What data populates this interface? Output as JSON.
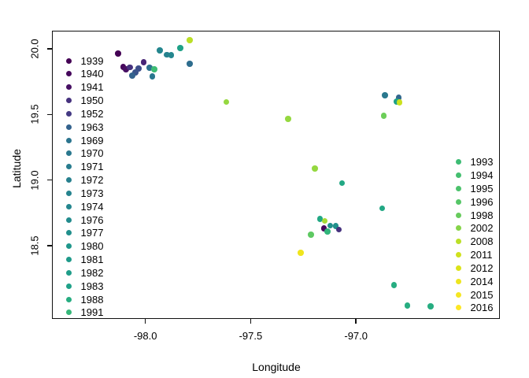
{
  "chart_data": {
    "type": "scatter",
    "title": "",
    "xlabel": "Longitude",
    "ylabel": "Latitude",
    "xlim": [
      -98.438,
      -96.326
    ],
    "ylim": [
      17.954,
      20.132
    ],
    "x_ticks": [
      -98.0,
      -97.5,
      -97.0
    ],
    "x_tick_labels": [
      "-98.0",
      "-97.5",
      "-97.0"
    ],
    "y_ticks": [
      18.5,
      19.0,
      19.5,
      20.0
    ],
    "y_tick_labels": [
      "18.5",
      "19.0",
      "19.5",
      "20.0"
    ],
    "grid": false,
    "point_color_scale": "viridis",
    "legend_left": {
      "position": "inside-top-left",
      "entries": [
        {
          "label": "1939",
          "color": "#440154"
        },
        {
          "label": "1940",
          "color": "#46085C"
        },
        {
          "label": "1941",
          "color": "#471063"
        },
        {
          "label": "1950",
          "color": "#46327E"
        },
        {
          "label": "1952",
          "color": "#443A83"
        },
        {
          "label": "1963",
          "color": "#33628D"
        },
        {
          "label": "1969",
          "color": "#2B748E"
        },
        {
          "label": "1970",
          "color": "#2A788E"
        },
        {
          "label": "1971",
          "color": "#287C8E"
        },
        {
          "label": "1972",
          "color": "#27808E"
        },
        {
          "label": "1973",
          "color": "#25838E"
        },
        {
          "label": "1974",
          "color": "#24868E"
        },
        {
          "label": "1976",
          "color": "#228B8D"
        },
        {
          "label": "1977",
          "color": "#218F8C"
        },
        {
          "label": "1980",
          "color": "#1F978B"
        },
        {
          "label": "1981",
          "color": "#1F9A8A"
        },
        {
          "label": "1982",
          "color": "#1F9D89"
        },
        {
          "label": "1983",
          "color": "#1FA188"
        },
        {
          "label": "1988",
          "color": "#27AD81"
        },
        {
          "label": "1991",
          "color": "#35B779"
        }
      ]
    },
    "legend_right": {
      "position": "inside-right",
      "entries": [
        {
          "label": "1993",
          "color": "#3DBC74"
        },
        {
          "label": "1994",
          "color": "#44BF70"
        },
        {
          "label": "1995",
          "color": "#4CC26C"
        },
        {
          "label": "1996",
          "color": "#55C667"
        },
        {
          "label": "1998",
          "color": "#67CB5D"
        },
        {
          "label": "2002",
          "color": "#86D449"
        },
        {
          "label": "2008",
          "color": "#BBDF27"
        },
        {
          "label": "2011",
          "color": "#D0E11D"
        },
        {
          "label": "2012",
          "color": "#DCE319"
        },
        {
          "label": "2014",
          "color": "#EDE51F"
        },
        {
          "label": "2015",
          "color": "#F5E622"
        },
        {
          "label": "2016",
          "color": "#FDE725"
        }
      ]
    },
    "points": [
      {
        "lon": -98.127,
        "lat": 19.964,
        "color": "#440154"
      },
      {
        "lon": -98.104,
        "lat": 19.862,
        "color": "#46085C"
      },
      {
        "lon": -98.09,
        "lat": 19.844,
        "color": "#471063"
      },
      {
        "lon": -98.071,
        "lat": 19.859,
        "color": "#46327E"
      },
      {
        "lon": -98.007,
        "lat": 19.898,
        "color": "#482576"
      },
      {
        "lon": -98.03,
        "lat": 19.85,
        "color": "#3D4E8A"
      },
      {
        "lon": -98.045,
        "lat": 19.82,
        "color": "#3A538B"
      },
      {
        "lon": -98.06,
        "lat": 19.796,
        "color": "#33638D"
      },
      {
        "lon": -97.978,
        "lat": 19.856,
        "color": "#2C718E"
      },
      {
        "lon": -97.955,
        "lat": 19.844,
        "color": "#3DBC74"
      },
      {
        "lon": -97.966,
        "lat": 19.79,
        "color": "#2A768E"
      },
      {
        "lon": -97.929,
        "lat": 19.988,
        "color": "#24868E"
      },
      {
        "lon": -97.896,
        "lat": 19.955,
        "color": "#26828E"
      },
      {
        "lon": -97.875,
        "lat": 19.952,
        "color": "#24868E"
      },
      {
        "lon": -97.832,
        "lat": 20.006,
        "color": "#1FA187"
      },
      {
        "lon": -97.787,
        "lat": 20.066,
        "color": "#BBDF27"
      },
      {
        "lon": -97.787,
        "lat": 19.886,
        "color": "#2E6D8E"
      },
      {
        "lon": -97.614,
        "lat": 19.595,
        "color": "#95D840"
      },
      {
        "lon": -97.321,
        "lat": 19.466,
        "color": "#95D840"
      },
      {
        "lon": -97.194,
        "lat": 19.088,
        "color": "#95D840"
      },
      {
        "lon": -97.065,
        "lat": 18.977,
        "color": "#22A884"
      },
      {
        "lon": -96.873,
        "lat": 18.785,
        "color": "#22A884"
      },
      {
        "lon": -97.168,
        "lat": 18.704,
        "color": "#22A884"
      },
      {
        "lon": -97.147,
        "lat": 18.689,
        "color": "#A6DB35"
      },
      {
        "lon": -97.121,
        "lat": 18.653,
        "color": "#21918C"
      },
      {
        "lon": -97.095,
        "lat": 18.65,
        "color": "#21918C"
      },
      {
        "lon": -97.151,
        "lat": 18.632,
        "color": "#46085C"
      },
      {
        "lon": -97.134,
        "lat": 18.608,
        "color": "#31B57B"
      },
      {
        "lon": -97.08,
        "lat": 18.623,
        "color": "#46327E"
      },
      {
        "lon": -97.211,
        "lat": 18.584,
        "color": "#5EC962"
      },
      {
        "lon": -97.261,
        "lat": 18.446,
        "color": "#F0E51D"
      },
      {
        "lon": -96.817,
        "lat": 18.2,
        "color": "#27AD81"
      },
      {
        "lon": -96.754,
        "lat": 18.044,
        "color": "#27AD81"
      },
      {
        "lon": -96.644,
        "lat": 18.038,
        "color": "#27AD81"
      },
      {
        "lon": -96.86,
        "lat": 19.646,
        "color": "#2A788E"
      },
      {
        "lon": -96.795,
        "lat": 19.628,
        "color": "#31688E"
      },
      {
        "lon": -96.804,
        "lat": 19.598,
        "color": "#1FA187"
      },
      {
        "lon": -96.791,
        "lat": 19.592,
        "color": "#CCE11E"
      },
      {
        "lon": -96.866,
        "lat": 19.49,
        "color": "#6CCE59"
      }
    ]
  }
}
